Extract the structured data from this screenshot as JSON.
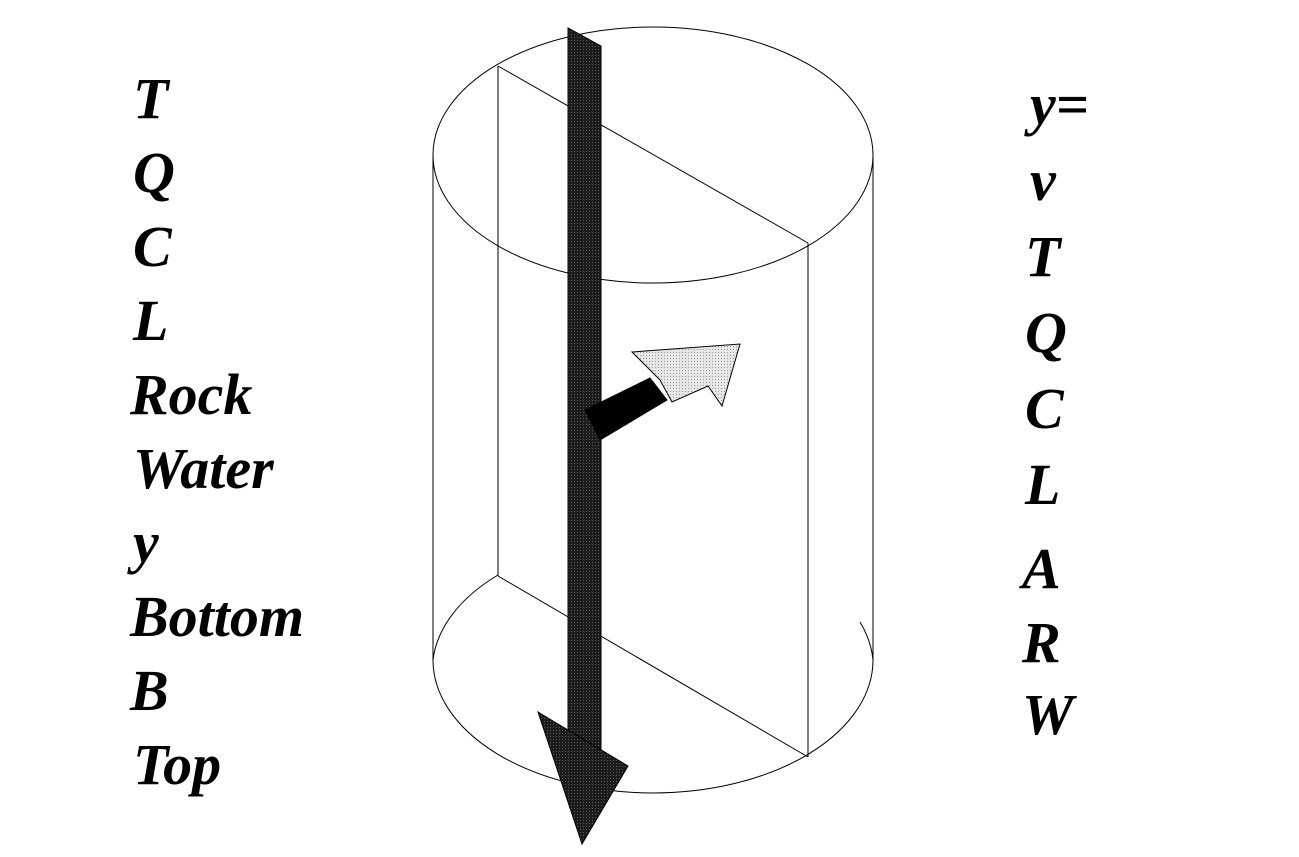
{
  "left_labels": [
    "T",
    "Q",
    "C",
    "L",
    "Rock",
    "Water",
    "y",
    "Bottom",
    "B",
    "Top"
  ],
  "right_labels": [
    "y=",
    "v",
    "T",
    "Q",
    "C",
    "L",
    "A",
    "R",
    "W"
  ],
  "colors": {
    "line": "#000000",
    "vertical_arrow": "#2a2a2a",
    "side_arrow_head": "#d4d4d4",
    "background": "#ffffff"
  }
}
